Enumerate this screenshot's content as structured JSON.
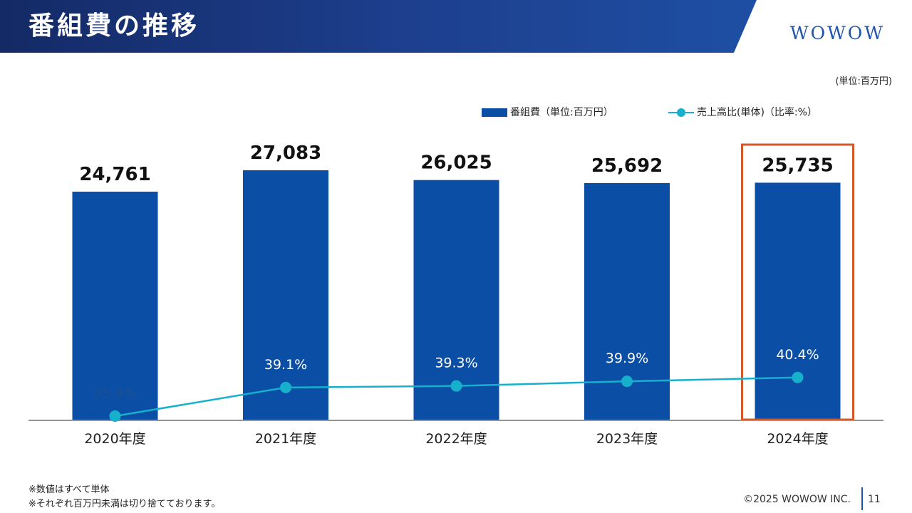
{
  "header": {
    "title": "番組費の推移",
    "brand": "WOWOW"
  },
  "unit_note": "(単位:百万円)",
  "legend": {
    "bar_label": "番組費（単位:百万円）",
    "line_label": "売上高比(単体)（比率:%）"
  },
  "chart_data": {
    "type": "bar",
    "categories": [
      "2020年度",
      "2021年度",
      "2022年度",
      "2023年度",
      "2024年度"
    ],
    "series": [
      {
        "name": "番組費（単位:百万円）",
        "type": "bar",
        "values": [
          24761,
          27083,
          26025,
          25692,
          25735
        ],
        "labels": [
          "24,761",
          "27,083",
          "26,025",
          "25,692",
          "25,735"
        ],
        "color": "#0b4ea6"
      },
      {
        "name": "売上高比(単体)（比率:%）",
        "type": "line",
        "values": [
          35.4,
          39.1,
          39.3,
          39.9,
          40.4
        ],
        "labels": [
          "35.4%",
          "39.1%",
          "39.3%",
          "39.9%",
          "40.4%"
        ],
        "color": "#16b0cc"
      }
    ],
    "highlight_category": "2024年度",
    "highlight_color": "#d4572a",
    "title": "",
    "xlabel": "",
    "ylabel": "",
    "grid": false,
    "legend_position": "top-right"
  },
  "footnotes": [
    "※数値はすべて単体",
    "※それぞれ百万円未満は切り捨てております。"
  ],
  "footer": {
    "copyright": "©2025 WOWOW INC.",
    "page_number": "11"
  },
  "colors": {
    "header_dark": "#142a66",
    "header_light": "#1f56ad",
    "bar": "#0b4ea6",
    "line": "#16b0cc",
    "highlight": "#d4572a"
  }
}
